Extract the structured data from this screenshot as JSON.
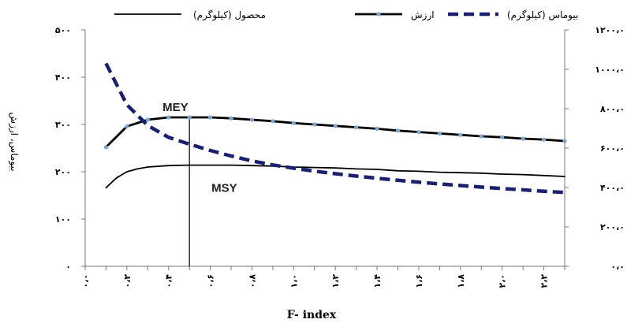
{
  "chart_data": {
    "type": "line",
    "xlabel": "F- index",
    "ylabel_left": "بیوماس، ارزش",
    "x_tick_labels": [
      "۰،۰",
      "۰،۲",
      "۰،۴",
      "۰،۶",
      "۰،۸",
      "۱،۰",
      "۱،۲",
      "۱،۴",
      "۱،۶",
      "۱،۸",
      "۲،۰",
      "۲،۲"
    ],
    "y_left_tick_labels": [
      "۰",
      "۱۰۰",
      "۲۰۰",
      "۳۰۰",
      "۴۰۰",
      "۵۰۰"
    ],
    "y_right_tick_labels": [
      "۰،۰",
      "۲۰۰،۰",
      "۴۰۰،۰",
      "۶۰۰،۰",
      "۸۰۰،۰",
      "۱۰۰۰،۰",
      "۱۲۰۰،۰"
    ],
    "xlim": [
      0,
      2.3
    ],
    "ylim_left": [
      0,
      500
    ],
    "ylim_right": [
      0,
      1200
    ],
    "legend_position": "top",
    "series": [
      {
        "name": "محصول (کیلوگرم)",
        "axis": "left",
        "style": "thin-solid",
        "color": "#000000",
        "x": [
          0.1,
          0.15,
          0.2,
          0.25,
          0.3,
          0.4,
          0.5,
          0.6,
          0.7,
          0.8,
          0.9,
          1.0,
          1.1,
          1.2,
          1.3,
          1.4,
          1.5,
          1.6,
          1.7,
          1.8,
          1.9,
          2.0,
          2.1,
          2.2,
          2.3
        ],
        "values": [
          166,
          187,
          200,
          206,
          210,
          213,
          214,
          214,
          214,
          213,
          212,
          210,
          209,
          208,
          206,
          205,
          202,
          201,
          199,
          198,
          197,
          195,
          194,
          192,
          190
        ]
      },
      {
        "name": "ارزش",
        "axis": "left",
        "style": "thick-solid-markers",
        "color": "#000000",
        "marker_color": "#7ea6cf",
        "x": [
          0.1,
          0.2,
          0.3,
          0.4,
          0.5,
          0.6,
          0.7,
          0.8,
          0.9,
          1.0,
          1.1,
          1.2,
          1.3,
          1.4,
          1.5,
          1.6,
          1.7,
          1.8,
          1.9,
          2.0,
          2.1,
          2.2,
          2.3
        ],
        "values": [
          252,
          296,
          310,
          315,
          315,
          315,
          313,
          310,
          307,
          303,
          300,
          297,
          294,
          291,
          287,
          284,
          281,
          278,
          275,
          273,
          270,
          268,
          265
        ]
      },
      {
        "name": "بیوماس (کیلوگرم)",
        "axis": "right",
        "style": "thick-dashed",
        "color": "#1a1f6e",
        "x": [
          0.1,
          0.2,
          0.3,
          0.4,
          0.5,
          0.6,
          0.7,
          0.8,
          0.9,
          1.0,
          1.1,
          1.2,
          1.3,
          1.4,
          1.5,
          1.6,
          1.7,
          1.8,
          1.9,
          2.0,
          2.1,
          2.2,
          2.3
        ],
        "values": [
          1030,
          820,
          715,
          655,
          620,
          588,
          560,
          535,
          515,
          498,
          483,
          470,
          458,
          447,
          437,
          427,
          418,
          410,
          402,
          395,
          388,
          381,
          375
        ]
      }
    ],
    "annotations": [
      {
        "text": "MEY",
        "x": 0.5,
        "y": 315
      },
      {
        "text": "MSY",
        "x": 0.5,
        "y": 214
      }
    ],
    "reference_line": {
      "x": 0.5
    }
  }
}
